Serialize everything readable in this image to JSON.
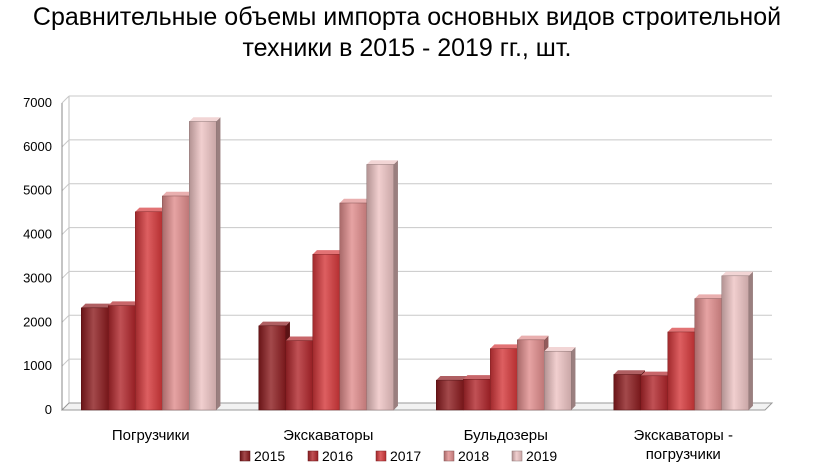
{
  "chart_data": {
    "type": "bar",
    "title_lines": [
      "Сравнительные объемы импорта основных видов строительной",
      "техники в 2015 - 2019 гг., шт."
    ],
    "categories": [
      [
        "Погрузчики"
      ],
      [
        "Экскаваторы"
      ],
      [
        "Бульдозеры"
      ],
      [
        "Экскаваторы -",
        "погрузчики"
      ]
    ],
    "series": [
      {
        "name": "2015",
        "values": [
          2330,
          1920,
          680,
          810
        ],
        "color": "#8c1b1e"
      },
      {
        "name": "2016",
        "values": [
          2380,
          1580,
          700,
          780
        ],
        "color": "#b0252a"
      },
      {
        "name": "2017",
        "values": [
          4520,
          3550,
          1400,
          1780
        ],
        "color": "#d5373a"
      },
      {
        "name": "2018",
        "values": [
          4880,
          4720,
          1600,
          2540
        ],
        "color": "#e08c8c"
      },
      {
        "name": "2019",
        "values": [
          6580,
          5600,
          1340,
          3060
        ],
        "color": "#edc3c3"
      }
    ],
    "yticks": [
      0,
      1000,
      2000,
      3000,
      4000,
      5000,
      6000,
      7000
    ],
    "ylim": [
      0,
      7000
    ],
    "grid": true,
    "legend_position": "bottom"
  }
}
